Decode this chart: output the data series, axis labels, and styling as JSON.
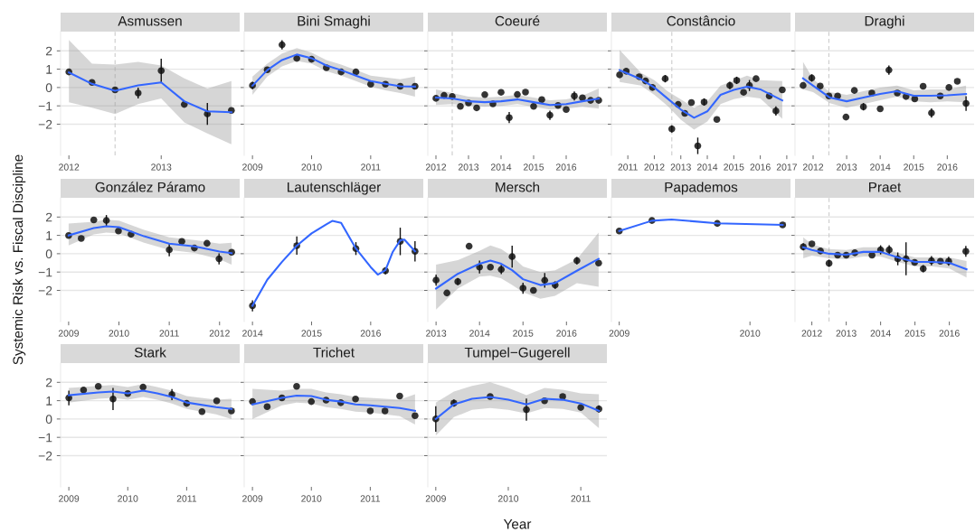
{
  "chart_data": [
    {
      "type": "scatter",
      "title": "Asmussen",
      "xlim": [
        2011.91,
        2013.85
      ],
      "xticks": [
        2012,
        2013
      ],
      "ylim": [
        -3.7,
        3.05
      ],
      "yticks": [
        -2,
        -1,
        0,
        1,
        2
      ],
      "grid": "y",
      "ref_lines": [
        {
          "axis": "x",
          "value": 2012.5,
          "color": "#cccccc",
          "line_style": "dashed"
        }
      ],
      "series": [
        {
          "color": "#111111",
          "x": [
            2012.0,
            2012.25,
            2012.5,
            2012.75,
            2013.0,
            2013.25,
            2013.5,
            2013.76
          ],
          "values": [
            0.85,
            0.28,
            -0.13,
            -0.3,
            0.92,
            -0.92,
            -1.44,
            -1.25
          ],
          "errors": [
            null,
            null,
            null,
            0.3,
            0.65,
            null,
            0.6,
            null
          ]
        },
        {
          "type": "line",
          "color": "#3366ff",
          "x": [
            2012.0,
            2012.25,
            2012.5,
            2012.75,
            2013.0,
            2013.25,
            2013.5,
            2013.76
          ],
          "values": [
            0.82,
            0.2,
            -0.18,
            0.12,
            0.28,
            -0.75,
            -1.3,
            -1.35
          ],
          "lower": [
            -0.8,
            -1.1,
            -1.45,
            -0.9,
            -0.6,
            -1.9,
            -2.5,
            -3.1
          ],
          "upper": [
            2.6,
            1.3,
            1.25,
            1.4,
            1.2,
            0.5,
            -0.05,
            0.35
          ]
        }
      ]
    },
    {
      "type": "scatter",
      "title": "Bini Smaghi",
      "tick_labels": "x",
      "xlim": [
        2008.86,
        2011.89
      ],
      "xticks": [
        2009,
        2010,
        2011
      ],
      "ylim": [
        -3.7,
        3.05
      ],
      "yticks": [
        -2,
        -1,
        0,
        1,
        2
      ],
      "grid": "y",
      "series": [
        {
          "color": "#111111",
          "x": [
            2009.0,
            2009.25,
            2009.5,
            2009.75,
            2010.0,
            2010.25,
            2010.5,
            2010.75,
            2011.0,
            2011.25,
            2011.5,
            2011.75
          ],
          "values": [
            0.11,
            0.97,
            2.33,
            1.59,
            1.54,
            1.08,
            0.85,
            0.85,
            0.18,
            0.18,
            0.07,
            0.07
          ],
          "errors": [
            0.2,
            null,
            0.25,
            null,
            null,
            null,
            null,
            null,
            null,
            null,
            null,
            null
          ]
        },
        {
          "type": "line",
          "color": "#3366ff",
          "x": [
            2009.0,
            2009.25,
            2009.5,
            2009.75,
            2010.0,
            2010.25,
            2010.5,
            2010.75,
            2011.0,
            2011.25,
            2011.5,
            2011.75
          ],
          "values": [
            0.1,
            0.95,
            1.5,
            1.8,
            1.6,
            1.2,
            0.95,
            0.65,
            0.35,
            0.2,
            0.07,
            0.05
          ],
          "lower": [
            -0.4,
            0.6,
            1.15,
            1.45,
            1.3,
            0.9,
            0.65,
            0.35,
            0.05,
            -0.15,
            -0.3,
            -0.5
          ],
          "upper": [
            0.6,
            1.3,
            1.85,
            2.15,
            1.9,
            1.5,
            1.25,
            0.95,
            0.65,
            0.55,
            0.45,
            0.6
          ]
        }
      ]
    },
    {
      "type": "scatter",
      "title": "Coeuré",
      "tick_labels": "x",
      "xlim": [
        2011.75,
        2017.25
      ],
      "xticks": [
        2012,
        2013,
        2014,
        2015,
        2016
      ],
      "ylim": [
        -3.7,
        3.05
      ],
      "yticks": [
        -2,
        -1,
        0,
        1,
        2
      ],
      "grid": "y",
      "ref_lines": [
        {
          "axis": "x",
          "value": 2012.5,
          "color": "#cccccc",
          "line_style": "dashed"
        }
      ],
      "series": [
        {
          "color": "#111111",
          "x": [
            2012.0,
            2012.25,
            2012.5,
            2012.75,
            2013.0,
            2013.25,
            2013.5,
            2013.75,
            2014.0,
            2014.25,
            2014.5,
            2014.75,
            2015.0,
            2015.25,
            2015.5,
            2015.75,
            2016.0,
            2016.25,
            2016.5,
            2016.75,
            2017.0
          ],
          "values": [
            -0.59,
            -0.43,
            -0.49,
            -1.03,
            -0.84,
            -1.11,
            -0.39,
            -0.89,
            -0.26,
            -1.64,
            -0.38,
            -0.25,
            -1.03,
            -0.66,
            -1.51,
            -0.98,
            -1.2,
            -0.46,
            -0.56,
            -0.7,
            -0.7
          ],
          "errors": [
            null,
            null,
            null,
            null,
            null,
            null,
            null,
            null,
            null,
            0.3,
            null,
            null,
            null,
            null,
            0.25,
            null,
            null,
            0.25,
            null,
            null,
            null
          ]
        },
        {
          "type": "line",
          "color": "#3366ff",
          "x": [
            2012.0,
            2012.5,
            2013.0,
            2013.5,
            2014.0,
            2014.5,
            2015.0,
            2015.5,
            2016.0,
            2016.5,
            2017.0
          ],
          "values": [
            -0.55,
            -0.6,
            -0.75,
            -0.8,
            -0.75,
            -0.65,
            -0.8,
            -0.95,
            -0.9,
            -0.75,
            -0.6
          ],
          "lower": [
            -0.95,
            -0.9,
            -1.0,
            -1.05,
            -1.0,
            -0.9,
            -1.05,
            -1.2,
            -1.15,
            -1.05,
            -1.15
          ],
          "upper": [
            -0.1,
            -0.3,
            -0.5,
            -0.55,
            -0.5,
            -0.4,
            -0.55,
            -0.7,
            -0.65,
            -0.45,
            -0.05
          ]
        }
      ]
    },
    {
      "type": "scatter",
      "title": "Constâncio",
      "tick_labels": "x",
      "xlim": [
        2010.38,
        2017.14
      ],
      "xticks": [
        2011,
        2012,
        2013,
        2014,
        2015,
        2016,
        2017
      ],
      "ylim": [
        -3.7,
        3.05
      ],
      "yticks": [
        -2,
        -1,
        0,
        1,
        2
      ],
      "grid": "y",
      "ref_lines": [
        {
          "axis": "x",
          "value": 2012.66,
          "color": "#cccccc",
          "line_style": "dashed"
        }
      ],
      "series": [
        {
          "color": "#111111",
          "x": [
            2010.69,
            2010.94,
            2011.43,
            2011.67,
            2011.93,
            2012.41,
            2012.66,
            2012.9,
            2013.15,
            2013.4,
            2013.64,
            2013.88,
            2014.36,
            2014.85,
            2015.11,
            2015.37,
            2015.59,
            2015.84,
            2016.34,
            2016.59,
            2016.83
          ],
          "values": [
            0.69,
            0.89,
            0.59,
            0.36,
            0.0,
            0.48,
            -2.26,
            -0.92,
            -1.41,
            -0.82,
            -3.18,
            -0.79,
            -1.74,
            0.11,
            0.39,
            -0.26,
            0.11,
            0.48,
            -0.46,
            -1.28,
            -0.13
          ],
          "errors": [
            null,
            null,
            null,
            null,
            null,
            0.2,
            0.2,
            null,
            null,
            null,
            0.45,
            0.2,
            null,
            0.2,
            0.2,
            null,
            0.3,
            null,
            null,
            0.25,
            null
          ]
        },
        {
          "type": "line",
          "color": "#3366ff",
          "x": [
            2010.69,
            2011.5,
            2012.0,
            2012.5,
            2013.0,
            2013.5,
            2014.0,
            2014.5,
            2015.0,
            2015.5,
            2016.0,
            2016.83
          ],
          "values": [
            0.95,
            0.45,
            0.0,
            -0.6,
            -1.2,
            -1.65,
            -1.3,
            -0.4,
            -0.13,
            0.05,
            -0.1,
            -0.7
          ],
          "lower": [
            0.3,
            0.1,
            -0.4,
            -1.0,
            -1.75,
            -2.3,
            -1.85,
            -0.9,
            -0.63,
            -0.5,
            -0.6,
            -1.7
          ],
          "upper": [
            2.05,
            0.8,
            0.4,
            -0.2,
            -0.65,
            -1.1,
            -0.75,
            0.1,
            0.37,
            0.65,
            0.4,
            0.35
          ]
        }
      ]
    },
    {
      "type": "scatter",
      "title": "Draghi",
      "tick_labels": "x",
      "xlim": [
        2011.46,
        2016.8
      ],
      "xticks": [
        2012,
        2013,
        2014,
        2015,
        2016
      ],
      "ylim": [
        -3.7,
        3.05
      ],
      "yticks": [
        -2,
        -1,
        0,
        1,
        2
      ],
      "grid": "y",
      "ref_lines": [
        {
          "axis": "x",
          "value": 2012.47,
          "color": "#cccccc",
          "line_style": "dashed"
        }
      ],
      "series": [
        {
          "color": "#111111",
          "x": [
            2011.7,
            2011.96,
            2012.21,
            2012.47,
            2012.73,
            2012.98,
            2013.23,
            2013.5,
            2013.75,
            2014.0,
            2014.26,
            2014.51,
            2014.77,
            2015.03,
            2015.28,
            2015.53,
            2015.79,
            2016.05,
            2016.3,
            2016.56
          ],
          "values": [
            0.11,
            0.52,
            0.08,
            -0.46,
            -0.46,
            -1.61,
            -0.16,
            -1.05,
            -0.3,
            -1.16,
            0.95,
            -0.3,
            -0.49,
            -0.62,
            0.07,
            -1.39,
            -0.46,
            0.0,
            0.34,
            -0.87
          ],
          "errors": [
            null,
            0.2,
            null,
            null,
            null,
            null,
            null,
            0.2,
            null,
            null,
            0.25,
            null,
            null,
            null,
            null,
            0.25,
            null,
            null,
            null,
            0.4
          ]
        },
        {
          "type": "line",
          "color": "#3366ff",
          "x": [
            2011.7,
            2012.0,
            2012.5,
            2013.0,
            2013.5,
            2014.0,
            2014.5,
            2015.0,
            2015.5,
            2016.0,
            2016.56
          ],
          "values": [
            0.5,
            0.1,
            -0.55,
            -0.75,
            -0.55,
            -0.35,
            -0.2,
            -0.45,
            -0.45,
            -0.42,
            -0.35
          ],
          "lower": [
            -0.1,
            -0.25,
            -0.85,
            -1.1,
            -0.9,
            -0.7,
            -0.5,
            -0.75,
            -0.8,
            -0.75,
            -0.8
          ],
          "upper": [
            1.4,
            0.45,
            -0.25,
            -0.4,
            -0.2,
            0.0,
            0.1,
            -0.15,
            -0.1,
            -0.1,
            0.1
          ]
        }
      ]
    },
    {
      "type": "scatter",
      "title": "González Páramo",
      "ylabel": "Systemic Risk vs. Fiscal Discipline",
      "xlim": [
        2008.84,
        2012.4
      ],
      "xticks": [
        2009,
        2010,
        2011,
        2012
      ],
      "ylim": [
        -3.7,
        3.05
      ],
      "yticks": [
        -2,
        -1,
        0,
        1,
        2
      ],
      "grid": "y",
      "series": [
        {
          "color": "#111111",
          "x": [
            2009.0,
            2009.25,
            2009.5,
            2009.75,
            2009.99,
            2010.24,
            2011.0,
            2011.25,
            2011.5,
            2011.75,
            2011.99,
            2012.24
          ],
          "values": [
            0.99,
            0.83,
            1.84,
            1.81,
            1.24,
            1.06,
            0.21,
            0.67,
            0.31,
            0.57,
            -0.28,
            0.08
          ],
          "errors": [
            null,
            null,
            null,
            0.3,
            null,
            null,
            0.35,
            null,
            null,
            null,
            0.3,
            null
          ]
        },
        {
          "type": "line",
          "color": "#3366ff",
          "x": [
            2009.0,
            2009.5,
            2009.75,
            2010.0,
            2010.5,
            2011.0,
            2011.5,
            2012.0,
            2012.24
          ],
          "values": [
            1.0,
            1.4,
            1.5,
            1.45,
            0.95,
            0.55,
            0.4,
            0.12,
            0.03
          ],
          "lower": [
            0.45,
            1.05,
            1.15,
            1.1,
            0.6,
            0.2,
            0.05,
            -0.3,
            -0.6
          ],
          "upper": [
            1.65,
            1.75,
            1.85,
            1.8,
            1.3,
            0.9,
            0.75,
            0.55,
            0.6
          ]
        }
      ]
    },
    {
      "type": "scatter",
      "title": "Lautenschläger",
      "tick_labels": "x",
      "xlim": [
        2013.86,
        2016.89
      ],
      "xticks": [
        2014,
        2015,
        2016
      ],
      "ylim": [
        -3.7,
        3.05
      ],
      "yticks": [
        -2,
        -1,
        0,
        1,
        2
      ],
      "grid": "y",
      "series": [
        {
          "color": "#111111",
          "x": [
            2014.0,
            2014.75,
            2015.75,
            2016.25,
            2016.5,
            2016.75
          ],
          "values": [
            -2.84,
            0.44,
            0.28,
            -0.93,
            0.67,
            0.13
          ],
          "errors": [
            0.3,
            0.5,
            0.35,
            0.2,
            0.75,
            0.55
          ]
        },
        {
          "type": "line",
          "color": "#3366ff",
          "x": [
            2014.0,
            2014.25,
            2014.5,
            2014.75,
            2015.0,
            2015.25,
            2015.35,
            2015.5,
            2015.75,
            2016.0,
            2016.12,
            2016.25,
            2016.37,
            2016.5,
            2016.57,
            2016.75
          ],
          "values": [
            -2.84,
            -1.42,
            -0.44,
            0.44,
            1.11,
            1.6,
            1.79,
            1.68,
            0.28,
            -0.73,
            -1.14,
            -0.9,
            0.08,
            0.73,
            0.77,
            0.13
          ]
        }
      ]
    },
    {
      "type": "scatter",
      "title": "Mersch",
      "tick_labels": "x",
      "xlim": [
        2012.81,
        2016.93
      ],
      "xticks": [
        2013,
        2014,
        2015,
        2016
      ],
      "ylim": [
        -3.7,
        3.05
      ],
      "yticks": [
        -2,
        -1,
        0,
        1,
        2
      ],
      "grid": "y",
      "series": [
        {
          "color": "#111111",
          "x": [
            2013.0,
            2013.25,
            2013.5,
            2013.76,
            2014.0,
            2014.25,
            2014.5,
            2014.75,
            2015.0,
            2015.24,
            2015.5,
            2015.74,
            2016.24,
            2016.74
          ],
          "values": [
            -1.44,
            -2.14,
            -1.52,
            0.41,
            -0.73,
            -0.73,
            -0.86,
            -0.16,
            -1.88,
            -2.0,
            -1.45,
            -1.71,
            -0.38,
            -0.51
          ],
          "errors": [
            0.3,
            null,
            0.2,
            null,
            0.35,
            null,
            0.25,
            0.6,
            0.3,
            null,
            0.4,
            0.2,
            0.2,
            null
          ]
        },
        {
          "type": "line",
          "color": "#3366ff",
          "x": [
            2013.0,
            2013.5,
            2014.0,
            2014.25,
            2014.5,
            2014.75,
            2015.0,
            2015.4,
            2015.74,
            2016.24,
            2016.74
          ],
          "values": [
            -1.9,
            -1.1,
            -0.55,
            -0.38,
            -0.55,
            -0.9,
            -1.39,
            -1.71,
            -1.6,
            -0.93,
            -0.28
          ],
          "lower": [
            -3.05,
            -1.9,
            -1.25,
            -1.2,
            -1.35,
            -1.7,
            -2.1,
            -2.45,
            -2.3,
            -1.6,
            -1.8
          ],
          "upper": [
            -0.6,
            -0.35,
            0.15,
            0.45,
            0.25,
            -0.15,
            -0.7,
            -1.0,
            -0.9,
            -0.3,
            1.15
          ]
        }
      ]
    },
    {
      "type": "scatter",
      "title": "Papademos",
      "tick_labels": "x",
      "xlim": [
        2008.94,
        2010.31
      ],
      "xticks": [
        2009,
        2010
      ],
      "ylim": [
        -3.7,
        3.05
      ],
      "yticks": [
        -2,
        -1,
        0,
        1,
        2
      ],
      "grid": "y",
      "series": [
        {
          "color": "#111111",
          "x": [
            2009.0,
            2009.25,
            2009.75,
            2010.25
          ],
          "values": [
            1.24,
            1.81,
            1.65,
            1.57
          ]
        },
        {
          "type": "line",
          "color": "#3366ff",
          "x": [
            2009.0,
            2009.25,
            2009.4,
            2009.75,
            2010.25
          ],
          "values": [
            1.24,
            1.8,
            1.87,
            1.66,
            1.57
          ]
        }
      ]
    },
    {
      "type": "scatter",
      "title": "Praet",
      "tick_labels": "x",
      "xlim": [
        2011.51,
        2016.72
      ],
      "xticks": [
        2012,
        2013,
        2014,
        2015,
        2016
      ],
      "ylim": [
        -3.7,
        3.05
      ],
      "yticks": [
        -2,
        -1,
        0,
        1,
        2
      ],
      "grid": "y",
      "ref_lines": [
        {
          "axis": "x",
          "value": 2012.5,
          "color": "#cccccc",
          "line_style": "dashed"
        }
      ],
      "series": [
        {
          "color": "#111111",
          "x": [
            2011.75,
            2012.0,
            2012.25,
            2012.5,
            2012.75,
            2013.0,
            2013.25,
            2013.75,
            2014.0,
            2014.25,
            2014.5,
            2014.74,
            2014.99,
            2015.24,
            2015.48,
            2015.74,
            2015.98,
            2016.48
          ],
          "values": [
            0.38,
            0.54,
            0.15,
            -0.52,
            -0.08,
            -0.08,
            0.05,
            -0.08,
            0.21,
            0.21,
            -0.28,
            -0.28,
            -0.47,
            -0.82,
            -0.38,
            -0.41,
            -0.41,
            0.13
          ],
          "errors": [
            0.2,
            null,
            null,
            0.2,
            null,
            null,
            null,
            null,
            0.25,
            0.25,
            0.35,
            0.9,
            null,
            0.2,
            0.25,
            null,
            0.25,
            0.3
          ]
        },
        {
          "type": "line",
          "color": "#3366ff",
          "x": [
            2011.75,
            2012.0,
            2012.5,
            2013.0,
            2013.5,
            2014.0,
            2014.5,
            2015.0,
            2015.5,
            2016.0,
            2016.5
          ],
          "values": [
            0.35,
            0.2,
            0.0,
            -0.05,
            0.1,
            0.1,
            -0.2,
            -0.45,
            -0.45,
            -0.5,
            -0.85
          ],
          "lower": [
            -0.25,
            -0.1,
            -0.25,
            -0.3,
            -0.15,
            -0.15,
            -0.45,
            -0.7,
            -0.7,
            -0.8,
            -1.3
          ],
          "upper": [
            0.9,
            0.5,
            0.25,
            0.2,
            0.35,
            0.35,
            0.05,
            -0.2,
            -0.2,
            -0.2,
            -0.4
          ]
        }
      ]
    },
    {
      "type": "scatter",
      "title": "Stark",
      "xlim": [
        2008.86,
        2011.9
      ],
      "xticks": [
        2009,
        2010,
        2011
      ],
      "ylim": [
        -3.7,
        3.05
      ],
      "yticks": [
        -2,
        -1,
        0,
        1,
        2
      ],
      "grid": "y",
      "series": [
        {
          "color": "#111111",
          "x": [
            2009.0,
            2009.25,
            2009.5,
            2009.75,
            2010.0,
            2010.26,
            2010.75,
            2011.0,
            2011.26,
            2011.51,
            2011.76
          ],
          "values": [
            1.15,
            1.58,
            1.78,
            1.09,
            1.39,
            1.74,
            1.33,
            0.85,
            0.4,
            0.99,
            0.44
          ],
          "errors": [
            0.4,
            null,
            null,
            0.6,
            null,
            null,
            0.3,
            null,
            null,
            null,
            null
          ]
        },
        {
          "type": "line",
          "color": "#3366ff",
          "x": [
            2009.0,
            2009.5,
            2009.75,
            2010.0,
            2010.26,
            2010.5,
            2010.75,
            2011.0,
            2011.5,
            2011.76
          ],
          "values": [
            1.3,
            1.45,
            1.5,
            1.4,
            1.55,
            1.4,
            1.2,
            0.9,
            0.65,
            0.55
          ],
          "lower": [
            0.9,
            1.1,
            1.15,
            1.05,
            1.2,
            1.05,
            0.85,
            0.55,
            0.25,
            0.0
          ],
          "upper": [
            1.7,
            1.8,
            1.85,
            1.75,
            1.9,
            1.75,
            1.55,
            1.25,
            1.05,
            1.1
          ]
        }
      ]
    },
    {
      "type": "scatter",
      "title": "Trichet",
      "tick_labels": "x",
      "xlim": [
        2008.86,
        2011.9
      ],
      "xticks": [
        2009,
        2010,
        2011
      ],
      "ylim": [
        -3.7,
        3.05
      ],
      "yticks": [
        -2,
        -1,
        0,
        1,
        2
      ],
      "grid": "y",
      "series": [
        {
          "color": "#111111",
          "x": [
            2009.0,
            2009.25,
            2009.5,
            2009.75,
            2010.0,
            2010.25,
            2010.5,
            2010.75,
            2011.0,
            2011.25,
            2011.5,
            2011.76
          ],
          "values": [
            0.95,
            0.67,
            1.15,
            1.78,
            0.95,
            1.03,
            0.89,
            1.09,
            0.44,
            0.44,
            1.25,
            0.18
          ]
        },
        {
          "type": "line",
          "color": "#3366ff",
          "x": [
            2009.0,
            2009.5,
            2009.75,
            2010.0,
            2010.25,
            2010.5,
            2010.75,
            2011.0,
            2011.5,
            2011.76
          ],
          "values": [
            0.8,
            1.15,
            1.28,
            1.25,
            1.05,
            0.95,
            0.8,
            0.75,
            0.6,
            0.45
          ],
          "lower": [
            0.0,
            0.75,
            0.9,
            0.85,
            0.65,
            0.55,
            0.4,
            0.35,
            0.15,
            -0.3
          ],
          "upper": [
            1.65,
            1.55,
            1.65,
            1.65,
            1.45,
            1.35,
            1.2,
            1.15,
            1.05,
            1.35
          ]
        }
      ]
    },
    {
      "type": "scatter",
      "title": "Tumpel−Gugerell",
      "tick_labels": "x",
      "xlabel": "Year",
      "xlim": [
        2008.89,
        2011.36
      ],
      "xticks": [
        2009,
        2010,
        2011
      ],
      "ylim": [
        -3.7,
        3.05
      ],
      "yticks": [
        -2,
        -1,
        0,
        1,
        2
      ],
      "grid": "y",
      "series": [
        {
          "color": "#111111",
          "x": [
            2009.0,
            2009.25,
            2009.75,
            2010.25,
            2010.5,
            2010.75,
            2011.0,
            2011.25
          ],
          "values": [
            0.0,
            0.87,
            1.23,
            0.51,
            0.99,
            1.23,
            0.63,
            0.55
          ],
          "errors": [
            0.7,
            0.2,
            null,
            0.6,
            null,
            null,
            null,
            0.2
          ]
        },
        {
          "type": "line",
          "color": "#3366ff",
          "x": [
            2009.0,
            2009.25,
            2009.5,
            2009.75,
            2010.0,
            2010.25,
            2010.5,
            2010.75,
            2011.0,
            2011.25
          ],
          "values": [
            0.0,
            0.8,
            1.1,
            1.2,
            1.05,
            0.8,
            1.1,
            1.05,
            0.85,
            0.45
          ],
          "lower": [
            -0.9,
            0.1,
            0.5,
            0.6,
            0.5,
            0.3,
            0.6,
            0.55,
            0.35,
            -0.5
          ],
          "upper": [
            0.9,
            1.5,
            1.8,
            2.0,
            1.7,
            1.3,
            1.7,
            1.6,
            1.4,
            1.35
          ]
        }
      ]
    }
  ]
}
